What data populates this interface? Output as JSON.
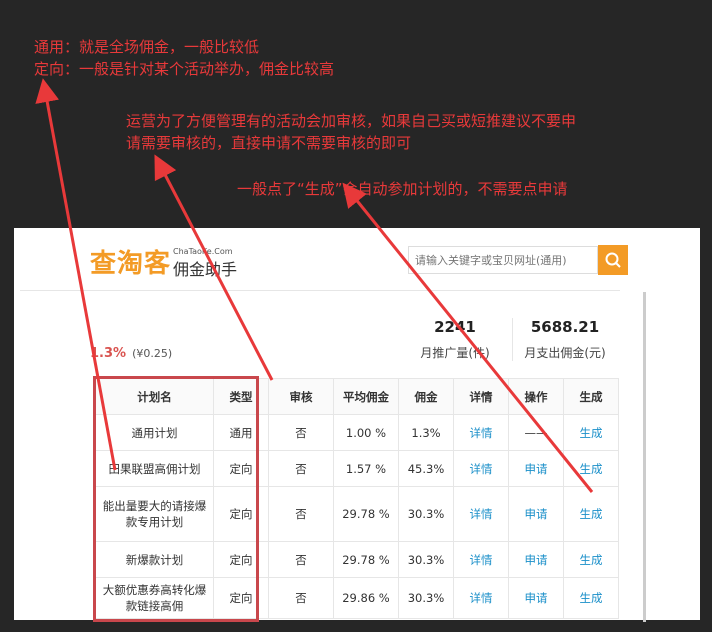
{
  "annotations": {
    "note1_line1": "通用：就是全场佣金，一般比较低",
    "note1_line2": "定向：一般是针对某个活动举办，佣金比较高",
    "note2_line1": "运营为了方便管理有的活动会加审核，如果自己买或短推建议不要申",
    "note2_line2": "请需要审核的，直接申请不需要审核的即可",
    "note3": "一般点了“生成”会自动参加计划的，不需要点申请",
    "color": "#e8393a"
  },
  "header": {
    "logo_main": "查淘客",
    "logo_en": "ChaTaoKe.Com",
    "logo_sub": "佣金助手",
    "search_placeholder": "请输入关键字或宝贝网址(通用)",
    "search_icon": "search-icon",
    "accent": "#f39b26"
  },
  "stats": [
    {
      "value": "2241",
      "label": "月推广量(件)"
    },
    {
      "value": "5688.21",
      "label": "月支出佣金(元)"
    }
  ],
  "rate": {
    "percent": "1.3%",
    "amount": "(¥0.25)"
  },
  "table": {
    "headers": [
      "计划名",
      "类型",
      "审核",
      "平均佣金",
      "佣金",
      "详情",
      "操作",
      "生成"
    ],
    "rows": [
      [
        "通用计划",
        "通用",
        "否",
        "1.00 %",
        "1.3%",
        "详情",
        "——",
        "生成"
      ],
      [
        "田果联盟高佣计划",
        "定向",
        "否",
        "1.57 %",
        "45.3%",
        "详情",
        "申请",
        "生成"
      ],
      [
        "能出量要大的请接爆款专用计划",
        "定向",
        "否",
        "29.78 %",
        "30.3%",
        "详情",
        "申请",
        "生成"
      ],
      [
        "新爆款计划",
        "定向",
        "否",
        "29.78 %",
        "30.3%",
        "详情",
        "申请",
        "生成"
      ],
      [
        "大额优惠券高转化爆款链接高佣",
        "定向",
        "否",
        "29.86 %",
        "30.3%",
        "详情",
        "申请",
        "生成"
      ]
    ]
  }
}
